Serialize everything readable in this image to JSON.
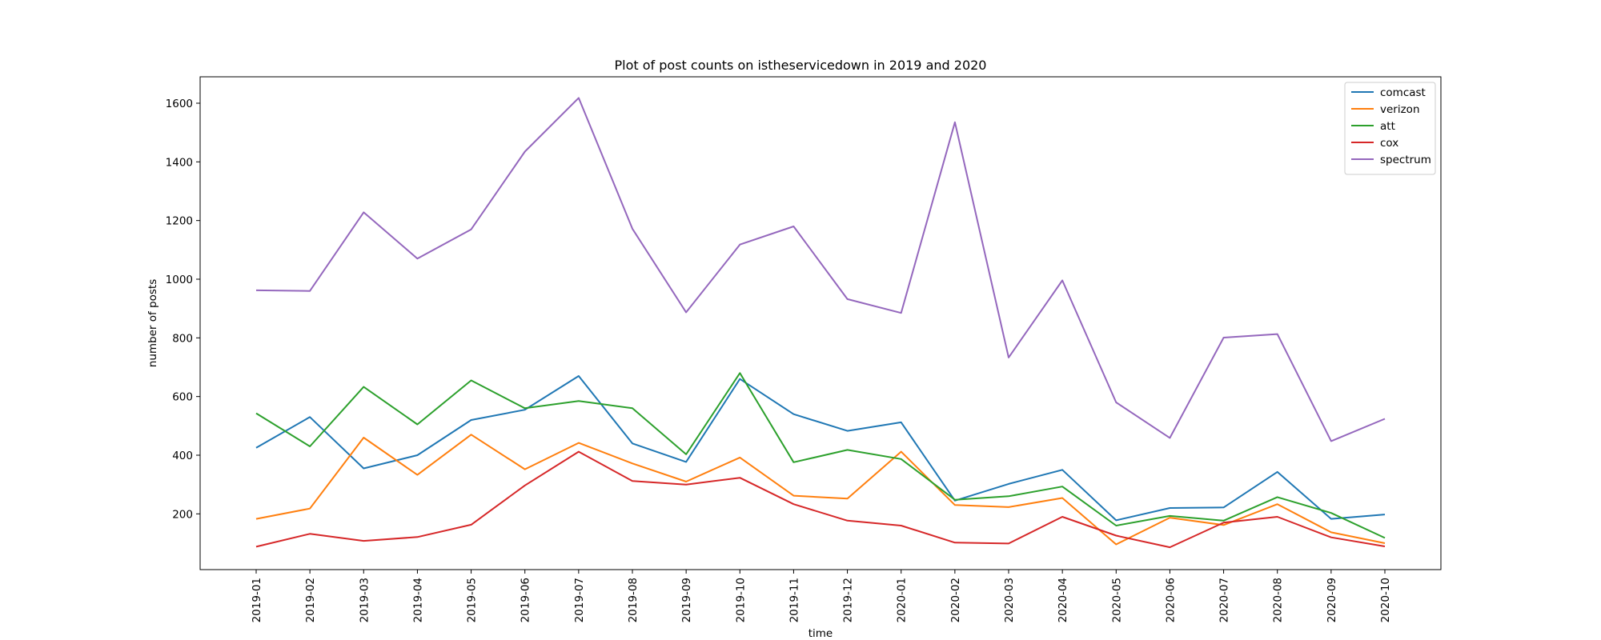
{
  "chart_data": {
    "type": "line",
    "title": "Plot of post counts on istheservicedown in 2019 and 2020",
    "xlabel": "time",
    "ylabel": "number of posts",
    "ylim": [
      10,
      1690
    ],
    "yticks": [
      200,
      400,
      600,
      800,
      1000,
      1200,
      1400,
      1600
    ],
    "grid": false,
    "legend_position": "top-right",
    "categories": [
      "2019-01",
      "2019-02",
      "2019-03",
      "2019-04",
      "2019-05",
      "2019-06",
      "2019-07",
      "2019-08",
      "2019-09",
      "2019-10",
      "2019-11",
      "2019-12",
      "2020-01",
      "2020-02",
      "2020-03",
      "2020-04",
      "2020-05",
      "2020-06",
      "2020-07",
      "2020-08",
      "2020-09",
      "2020-10"
    ],
    "series": [
      {
        "name": "comcast",
        "color": "#1f77b4",
        "values": [
          425,
          530,
          355,
          400,
          520,
          555,
          670,
          440,
          377,
          660,
          540,
          483,
          512,
          245,
          302,
          350,
          178,
          220,
          222,
          343,
          183,
          198
        ]
      },
      {
        "name": "verizon",
        "color": "#ff7f0e",
        "values": [
          183,
          218,
          460,
          333,
          470,
          352,
          442,
          372,
          310,
          392,
          262,
          252,
          412,
          230,
          223,
          254,
          96,
          187,
          162,
          233,
          137,
          100
        ]
      },
      {
        "name": "att",
        "color": "#2ca02c",
        "values": [
          543,
          430,
          633,
          505,
          655,
          560,
          585,
          560,
          403,
          680,
          376,
          418,
          387,
          248,
          260,
          293,
          160,
          193,
          177,
          257,
          203,
          118
        ]
      },
      {
        "name": "cox",
        "color": "#d62728",
        "values": [
          88,
          132,
          108,
          121,
          163,
          297,
          412,
          312,
          300,
          323,
          233,
          177,
          160,
          102,
          99,
          190,
          126,
          86,
          170,
          190,
          120,
          89
        ]
      },
      {
        "name": "spectrum",
        "color": "#9467bd",
        "values": [
          962,
          960,
          1228,
          1070,
          1170,
          1435,
          1618,
          1172,
          887,
          1118,
          1180,
          932,
          885,
          1535,
          733,
          996,
          580,
          459,
          801,
          813,
          448,
          524
        ]
      }
    ]
  }
}
